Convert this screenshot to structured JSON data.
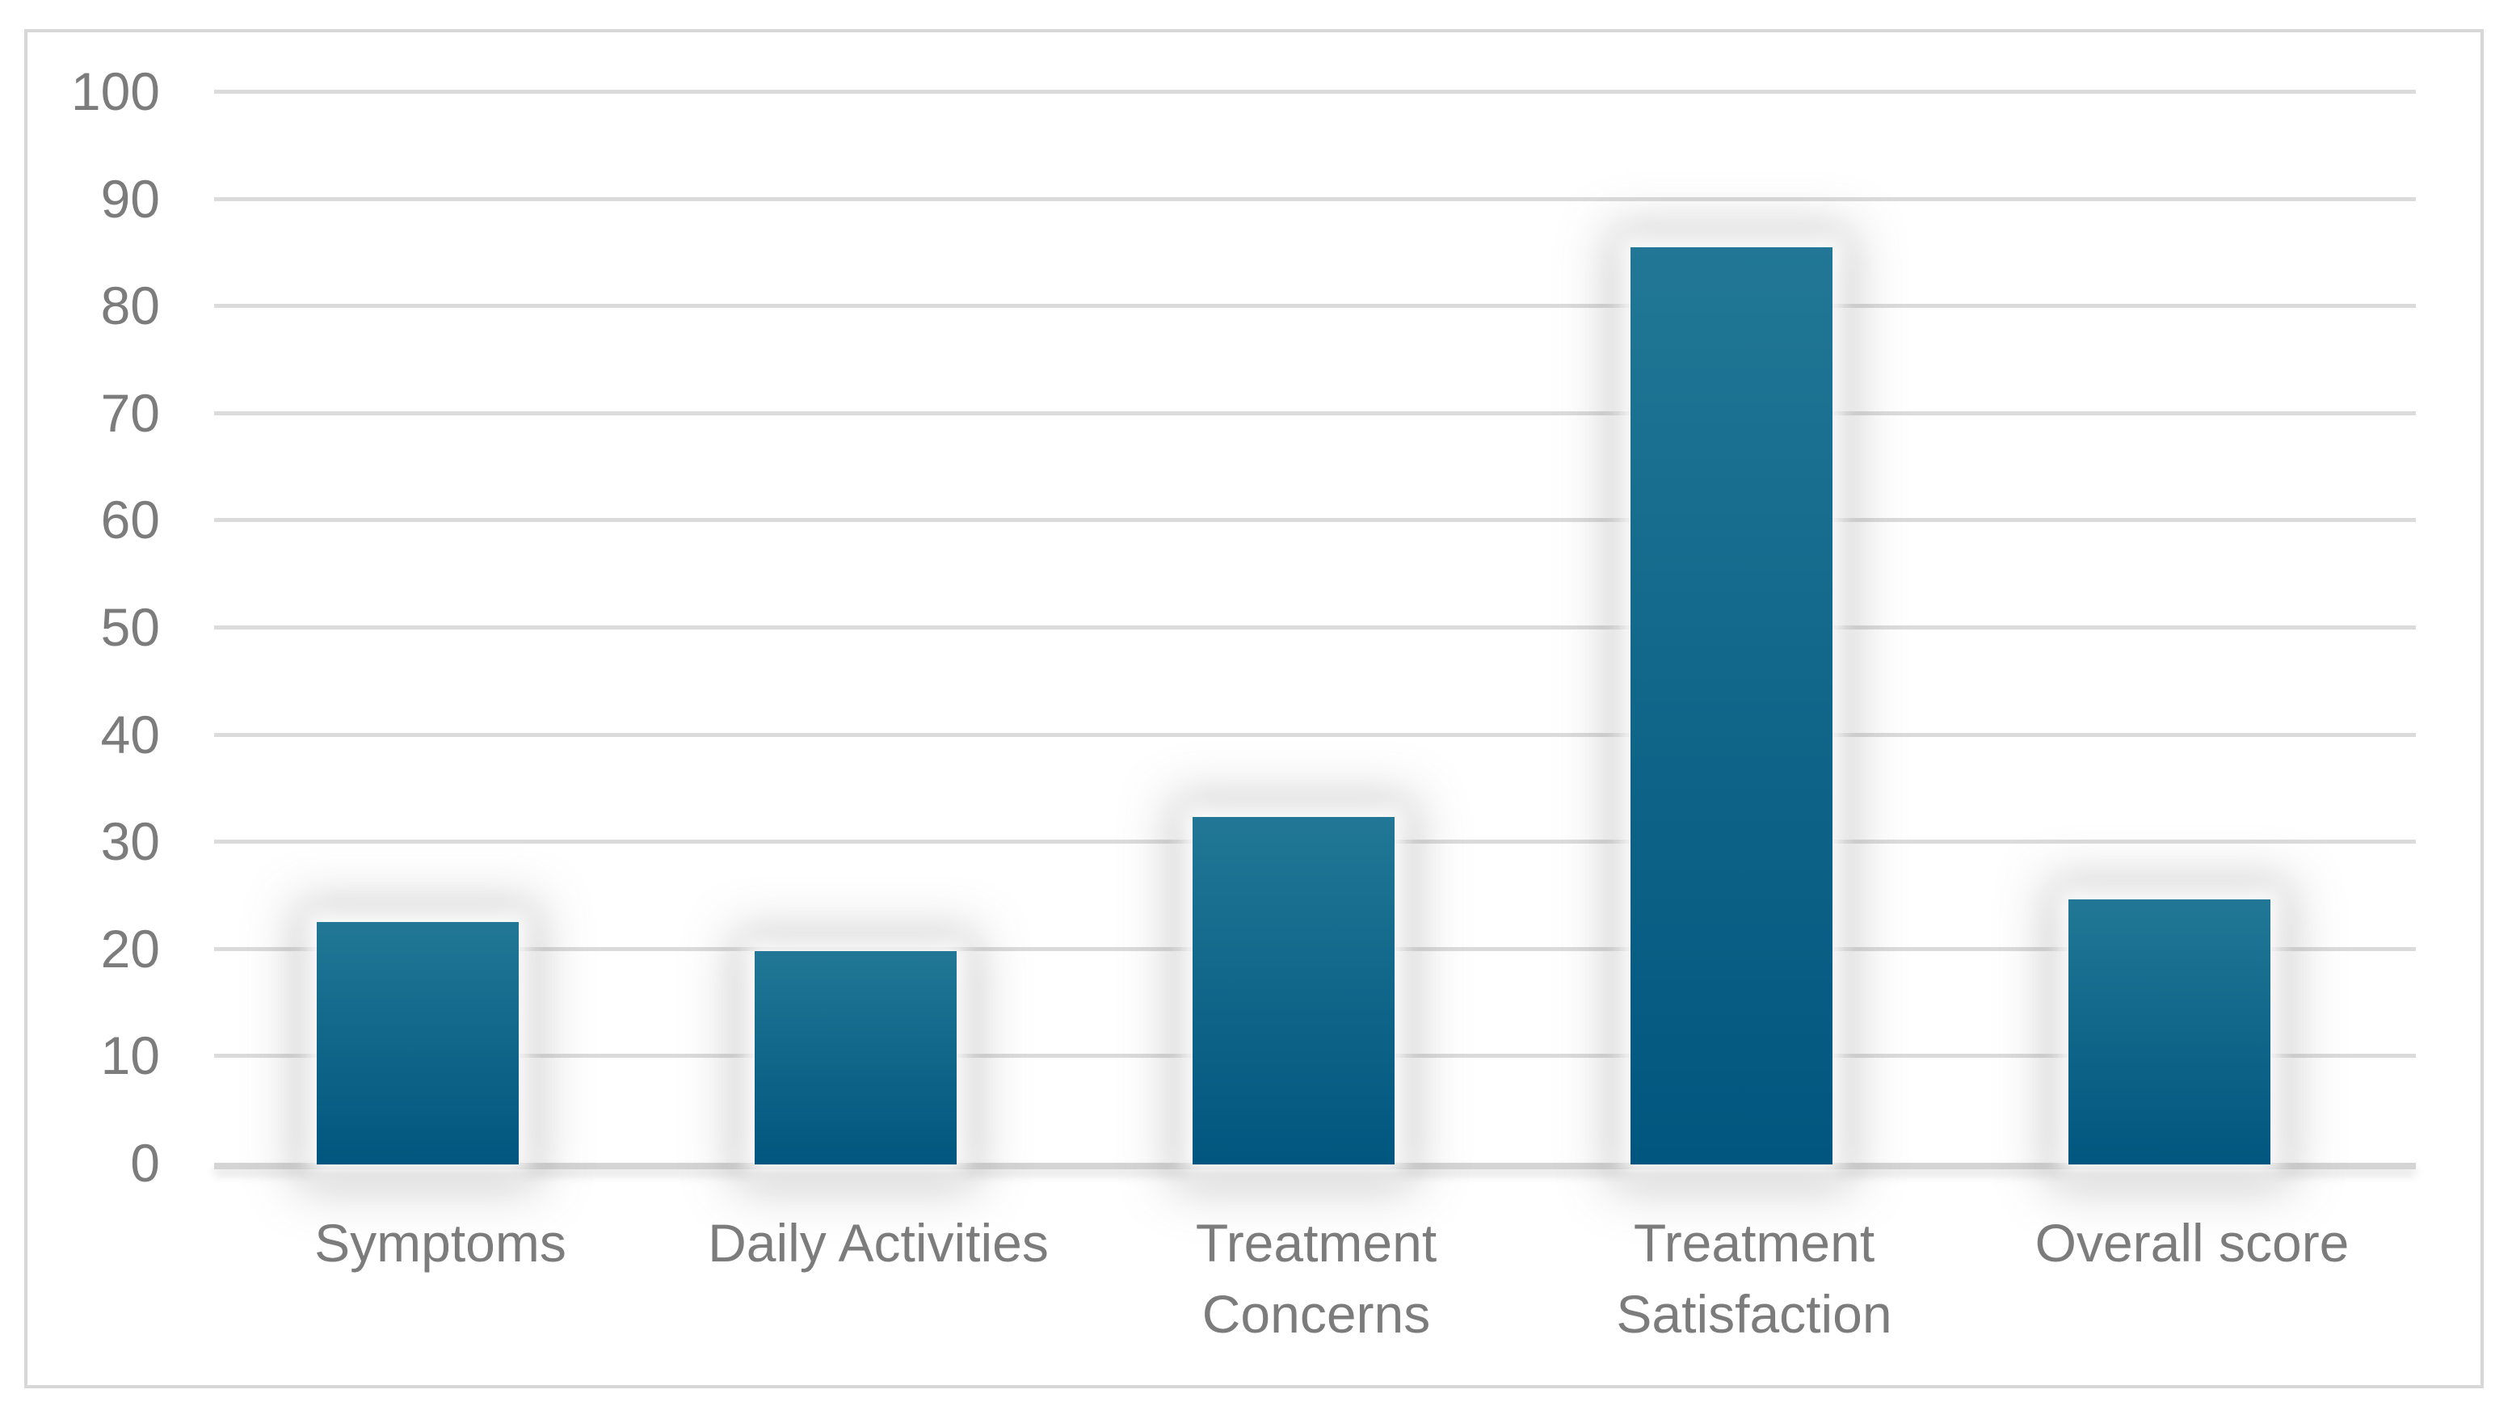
{
  "chart_data": {
    "type": "bar",
    "title": "",
    "xlabel": "",
    "ylabel": "",
    "categories": [
      "Symptoms",
      "Daily Activities",
      "Treatment Concerns",
      "Treatment Satisfaction",
      "Overall score"
    ],
    "category_display_lines": [
      [
        "Symptoms"
      ],
      [
        "Daily Activities"
      ],
      [
        "Treatment",
        "Concerns"
      ],
      [
        "Treatment",
        "Satisfaction"
      ],
      [
        "Overall score"
      ]
    ],
    "values": [
      22.6,
      19.9,
      32.4,
      85.6,
      24.7
    ],
    "ylim": [
      0,
      100
    ],
    "yticks": [
      0,
      10,
      20,
      30,
      40,
      50,
      60,
      70,
      80,
      90,
      100
    ],
    "ytick_labels": [
      "0",
      "10",
      "20",
      "30",
      "40",
      "50",
      "60",
      "70",
      "80",
      "90",
      "100"
    ],
    "grid": true,
    "legend": false,
    "colors": {
      "bar_gradient_top": "#217795",
      "bar_gradient_bottom": "#00567E",
      "gridline": "#DBDBDB",
      "axis_line": "#D4D4D4",
      "tick_label": "#7C7C7C",
      "category_label": "#7C7C7C",
      "frame_border": "#D7D7D7",
      "background": "#FFFFFF"
    }
  }
}
